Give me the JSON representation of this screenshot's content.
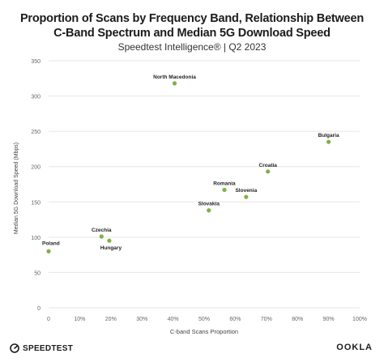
{
  "header": {
    "title_line1": "Proportion of Scans by Frequency Band, Relationship Between",
    "title_line2": "C-Band Spectrum and Median 5G Download Speed",
    "subtitle": "Speedtest Intelligence® | Q2 2023"
  },
  "footer": {
    "brand": "SPEEDTEST",
    "brand_icon": "speedtest-gauge-icon",
    "partner": "OOKLA"
  },
  "colors": {
    "point": "#7cb342",
    "grid": "#e6e6e6",
    "axis_text": "#666666"
  },
  "chart_data": {
    "type": "scatter",
    "xlabel": "C-band Scans Proportion",
    "ylabel": "Median 5G Download Speed (Mbps)",
    "xlim": [
      0,
      100
    ],
    "ylim": [
      0,
      350
    ],
    "x_ticks": [
      0,
      10,
      20,
      30,
      40,
      50,
      60,
      70,
      80,
      90,
      100
    ],
    "x_tick_labels": [
      "0",
      "10%",
      "20%",
      "30%",
      "40%",
      "50%",
      "60%",
      "70%",
      "80%",
      "90%",
      "100%"
    ],
    "y_ticks": [
      0,
      50,
      100,
      150,
      200,
      250,
      300,
      350
    ],
    "y_tick_labels": [
      "0",
      "50",
      "100",
      "150",
      "200",
      "250",
      "300",
      "350"
    ],
    "grid": "horizontal",
    "points": [
      {
        "label": "North Macedonia",
        "x": 40.5,
        "y": 318
      },
      {
        "label": "Bulgaria",
        "x": 90,
        "y": 235
      },
      {
        "label": "Croatia",
        "x": 70.5,
        "y": 193
      },
      {
        "label": "Romania",
        "x": 56.5,
        "y": 167
      },
      {
        "label": "Slovenia",
        "x": 63.5,
        "y": 157
      },
      {
        "label": "Slovakia",
        "x": 51.5,
        "y": 138
      },
      {
        "label": "Czechia",
        "x": 17,
        "y": 101
      },
      {
        "label": "Hungary",
        "x": 19.5,
        "y": 95
      },
      {
        "label": "Poland",
        "x": 0,
        "y": 80
      }
    ]
  }
}
